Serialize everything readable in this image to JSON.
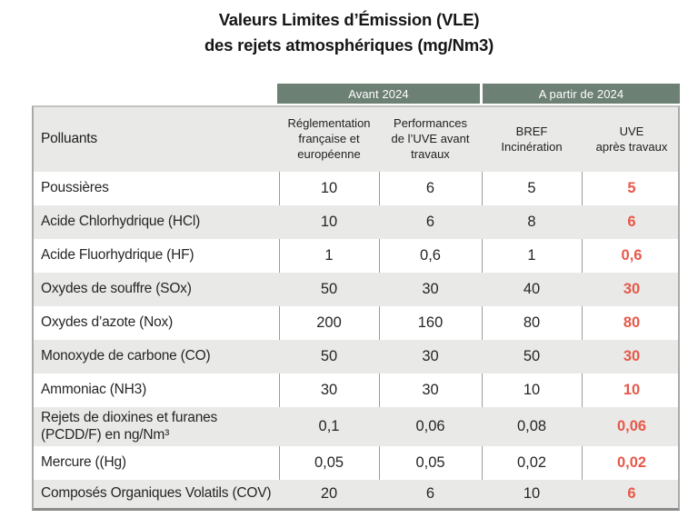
{
  "title": {
    "line1": "Valeurs Limites d’Émission (VLE)",
    "line2": "des rejets atmosphériques (mg/Nm3)"
  },
  "table": {
    "group_headers": [
      "Avant 2024",
      "A partir de 2024"
    ],
    "columns": [
      "Polluants",
      "Réglementation\nfrançaise et\neuropéenne",
      "Performances\nde l’UVE avant\ntravaux",
      "BREF\nIncinération",
      "UVE\naprès travaux"
    ],
    "rows": [
      {
        "label": "Poussières",
        "values": [
          "10",
          "6",
          "5",
          "5"
        ]
      },
      {
        "label": "Acide Chlorhydrique (HCl)",
        "values": [
          "10",
          "6",
          "8",
          "6"
        ]
      },
      {
        "label": "Acide Fluorhydrique (HF)",
        "values": [
          "1",
          "0,6",
          "1",
          "0,6"
        ]
      },
      {
        "label": "Oxydes de souffre (SOx)",
        "values": [
          "50",
          "30",
          "40",
          "30"
        ]
      },
      {
        "label": "Oxydes d’azote (Nox)",
        "values": [
          "200",
          "160",
          "80",
          "80"
        ]
      },
      {
        "label": "Monoxyde de carbone (CO)",
        "values": [
          "50",
          "30",
          "50",
          "30"
        ]
      },
      {
        "label": "Ammoniac (NH3)",
        "values": [
          "30",
          "30",
          "10",
          "10"
        ]
      },
      {
        "label": "Rejets de dioxines et furanes (PCDD/F) en ng/Nm³",
        "values": [
          "0,1",
          "0,06",
          "0,08",
          "0,06"
        ]
      },
      {
        "label": "Mercure ((Hg)",
        "values": [
          "0,05",
          "0,05",
          "0,02",
          "0,02"
        ]
      },
      {
        "label": "Composés Organiques Volatils (COV)",
        "values": [
          "20",
          "6",
          "10",
          "6"
        ]
      }
    ]
  },
  "colors": {
    "band_green": "#6d8074",
    "highlight_red": "#e7584a",
    "row_gray": "#e9e9e7"
  }
}
